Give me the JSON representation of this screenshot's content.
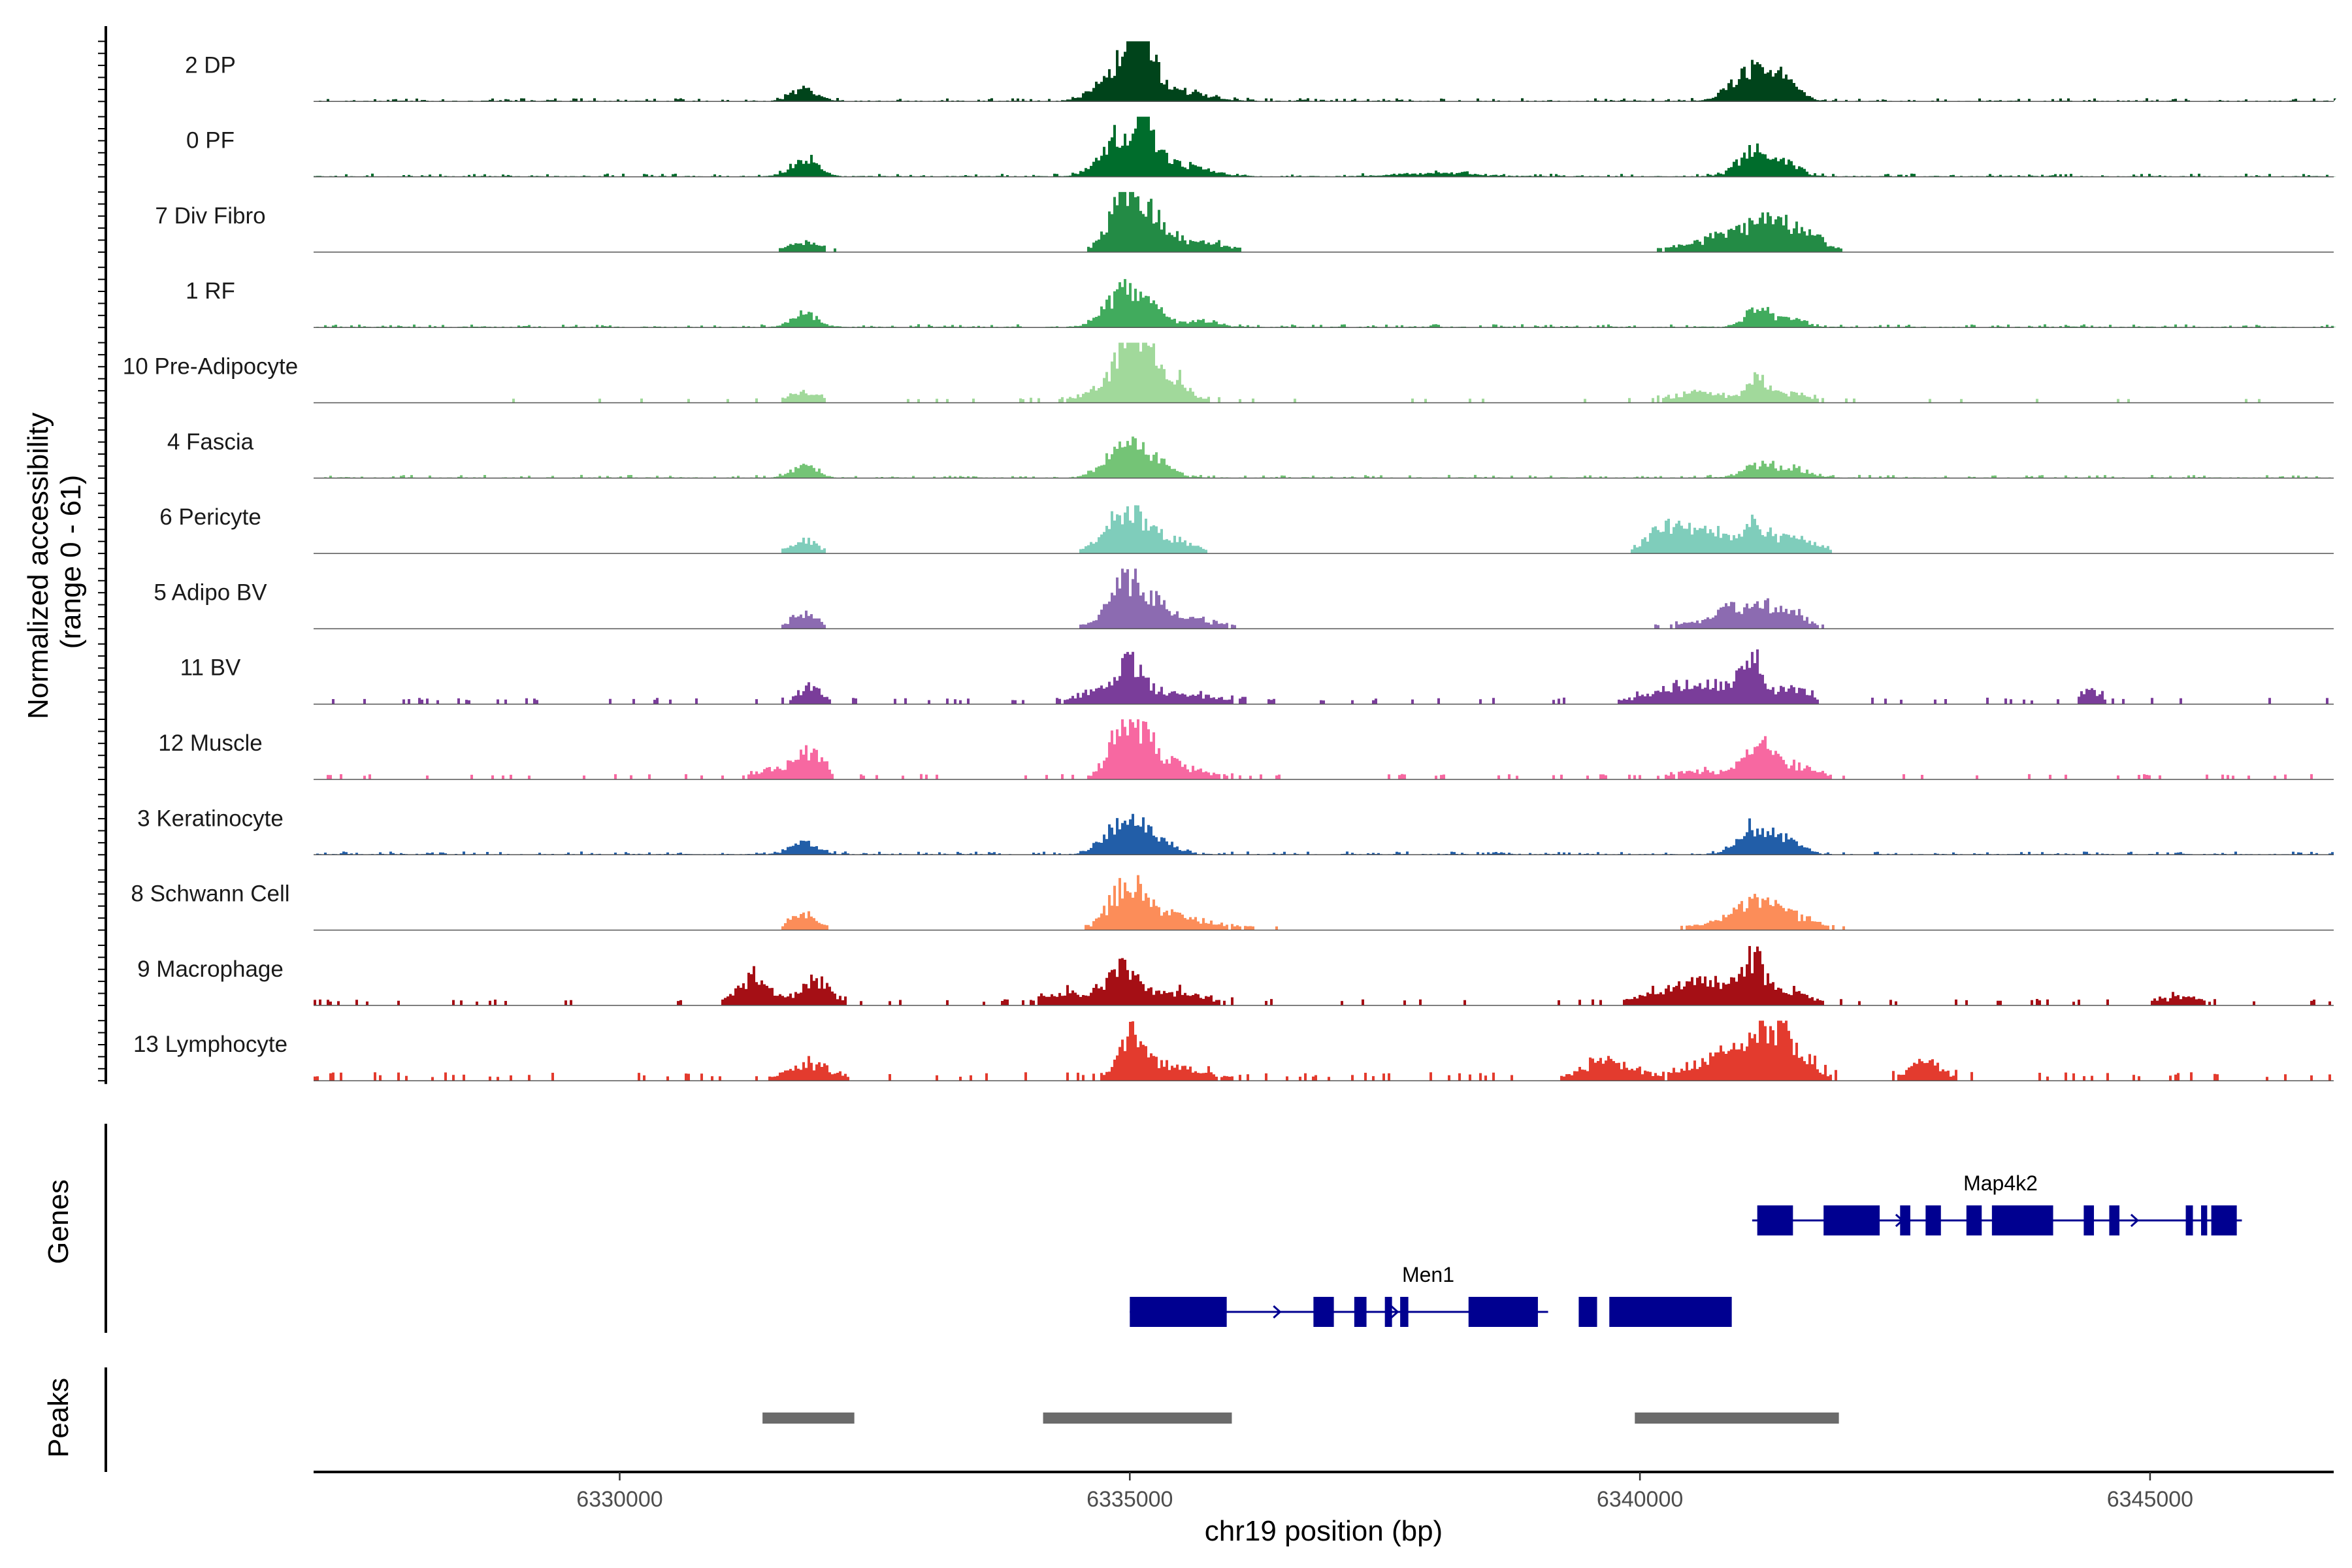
{
  "chart_data": {
    "type": "area",
    "title": "",
    "ylabel_lines": [
      "Normalized accessibility",
      "(range 0 - 61)"
    ],
    "xlabel": "chr19 position (bp)",
    "x_range": [
      6327000,
      6346800
    ],
    "x_ticks": [
      6330000,
      6335000,
      6340000,
      6345000
    ],
    "x_tick_labels": [
      "6330000",
      "6335000",
      "6340000",
      "6345000"
    ],
    "y_range": [
      0,
      61
    ],
    "genes_label": "Genes",
    "peaks_label": "Peaks",
    "series": [
      {
        "name": "2 DP",
        "color": "#00441b",
        "noise": 0.03,
        "gaps": false,
        "peaks": [
          [
            6331800,
            120,
            0.2
          ],
          [
            6334900,
            200,
            0.55
          ],
          [
            6335050,
            90,
            0.85
          ],
          [
            6335150,
            120,
            0.4
          ],
          [
            6335500,
            250,
            0.15
          ],
          [
            6341050,
            180,
            0.45
          ],
          [
            6341300,
            130,
            0.35
          ],
          [
            6341500,
            100,
            0.2
          ]
        ]
      },
      {
        "name": "0 PF",
        "color": "#006d2c",
        "noise": 0.03,
        "gaps": false,
        "peaks": [
          [
            6331800,
            120,
            0.32
          ],
          [
            6334950,
            200,
            0.7
          ],
          [
            6335150,
            100,
            0.35
          ],
          [
            6335500,
            250,
            0.18
          ],
          [
            6341100,
            150,
            0.4
          ],
          [
            6341450,
            120,
            0.2
          ],
          [
            6338000,
            400,
            0.05
          ]
        ]
      },
      {
        "name": "7 Div Fibro",
        "color": "#238b45",
        "noise": 0.03,
        "gaps": true,
        "peaks": [
          [
            6331800,
            150,
            0.15
          ],
          [
            6334950,
            160,
            0.9
          ],
          [
            6335250,
            150,
            0.4
          ],
          [
            6335700,
            250,
            0.15
          ],
          [
            6340500,
            250,
            0.12
          ],
          [
            6340800,
            130,
            0.2
          ],
          [
            6341200,
            180,
            0.55
          ],
          [
            6341600,
            180,
            0.3
          ]
        ]
      },
      {
        "name": "1 RF",
        "color": "#41ab5d",
        "noise": 0.03,
        "gaps": false,
        "peaks": [
          [
            6331800,
            120,
            0.22
          ],
          [
            6334950,
            180,
            0.6
          ],
          [
            6335250,
            120,
            0.25
          ],
          [
            6335700,
            160,
            0.1
          ],
          [
            6341150,
            130,
            0.28
          ],
          [
            6341500,
            120,
            0.12
          ]
        ]
      },
      {
        "name": "10 Pre-Adipocyte",
        "color": "#a1d99b",
        "noise": 0.04,
        "gaps": true,
        "peaks": [
          [
            6331800,
            150,
            0.15
          ],
          [
            6334950,
            120,
            0.65
          ],
          [
            6335100,
            120,
            0.7
          ],
          [
            6335450,
            100,
            0.3
          ],
          [
            6335000,
            400,
            0.25
          ],
          [
            6340600,
            300,
            0.15
          ],
          [
            6341150,
            100,
            0.35
          ],
          [
            6341500,
            150,
            0.15
          ]
        ]
      },
      {
        "name": "4 Fascia",
        "color": "#74c476",
        "noise": 0.03,
        "gaps": false,
        "peaks": [
          [
            6331800,
            120,
            0.2
          ],
          [
            6334950,
            180,
            0.6
          ],
          [
            6335300,
            120,
            0.25
          ],
          [
            6341150,
            150,
            0.2
          ],
          [
            6341500,
            150,
            0.15
          ]
        ]
      },
      {
        "name": "6 Pericyte",
        "color": "#7fcdbb",
        "noise": 0.03,
        "gaps": true,
        "peaks": [
          [
            6331800,
            120,
            0.2
          ],
          [
            6334950,
            200,
            0.65
          ],
          [
            6335400,
            200,
            0.2
          ],
          [
            6340300,
            200,
            0.45
          ],
          [
            6340700,
            130,
            0.35
          ],
          [
            6341100,
            120,
            0.45
          ],
          [
            6341500,
            200,
            0.25
          ]
        ]
      },
      {
        "name": "5 Adipo BV",
        "color": "#8c6bb1",
        "noise": 0.03,
        "gaps": true,
        "peaks": [
          [
            6331800,
            120,
            0.25
          ],
          [
            6334950,
            170,
            0.75
          ],
          [
            6335300,
            180,
            0.3
          ],
          [
            6335700,
            250,
            0.1
          ],
          [
            6340600,
            300,
            0.1
          ],
          [
            6340850,
            100,
            0.18
          ],
          [
            6341150,
            180,
            0.38
          ],
          [
            6341500,
            150,
            0.2
          ]
        ]
      },
      {
        "name": "11 BV",
        "color": "#7a3d9a",
        "noise": 0.06,
        "gaps": true,
        "peaks": [
          [
            6331850,
            100,
            0.3
          ],
          [
            6335000,
            130,
            0.55
          ],
          [
            6334700,
            200,
            0.2
          ],
          [
            6335500,
            300,
            0.15
          ],
          [
            6340300,
            300,
            0.2
          ],
          [
            6340800,
            300,
            0.25
          ],
          [
            6341100,
            100,
            0.6
          ],
          [
            6341500,
            150,
            0.2
          ],
          [
            6344400,
            100,
            0.2
          ]
        ]
      },
      {
        "name": "12 Muscle",
        "color": "#f768a1",
        "noise": 0.05,
        "gaps": true,
        "peaks": [
          [
            6331850,
            130,
            0.4
          ],
          [
            6331500,
            200,
            0.15
          ],
          [
            6334950,
            150,
            0.9
          ],
          [
            6335200,
            200,
            0.35
          ],
          [
            6335600,
            200,
            0.12
          ],
          [
            6341150,
            130,
            0.65
          ],
          [
            6341500,
            200,
            0.2
          ],
          [
            6340600,
            300,
            0.12
          ]
        ]
      },
      {
        "name": "3 Keratinocyte",
        "color": "#225ea8",
        "noise": 0.03,
        "gaps": false,
        "peaks": [
          [
            6331800,
            120,
            0.22
          ],
          [
            6334950,
            180,
            0.58
          ],
          [
            6335300,
            150,
            0.18
          ],
          [
            6341100,
            150,
            0.42
          ],
          [
            6341400,
            150,
            0.22
          ]
        ]
      },
      {
        "name": "8 Schwann Cell",
        "color": "#fc8d59",
        "noise": 0.03,
        "gaps": true,
        "peaks": [
          [
            6331800,
            130,
            0.25
          ],
          [
            6334950,
            170,
            0.62
          ],
          [
            6335300,
            250,
            0.25
          ],
          [
            6335800,
            300,
            0.08
          ],
          [
            6341150,
            200,
            0.45
          ],
          [
            6341550,
            200,
            0.15
          ],
          [
            6340700,
            200,
            0.1
          ]
        ]
      },
      {
        "name": "9 Macrophage",
        "color": "#a50f15",
        "noise": 0.06,
        "gaps": true,
        "peaks": [
          [
            6331300,
            160,
            0.42
          ],
          [
            6331900,
            160,
            0.35
          ],
          [
            6334400,
            250,
            0.2
          ],
          [
            6334950,
            160,
            0.55
          ],
          [
            6335500,
            250,
            0.18
          ],
          [
            6340200,
            250,
            0.15
          ],
          [
            6340700,
            300,
            0.35
          ],
          [
            6341100,
            100,
            0.6
          ],
          [
            6341450,
            200,
            0.2
          ],
          [
            6345300,
            200,
            0.12
          ]
        ]
      },
      {
        "name": "13 Lymphocyte",
        "color": "#e33b2e",
        "noise": 0.08,
        "gaps": true,
        "peaks": [
          [
            6331850,
            200,
            0.25
          ],
          [
            6335000,
            120,
            0.65
          ],
          [
            6335400,
            300,
            0.2
          ],
          [
            6339700,
            250,
            0.3
          ],
          [
            6340700,
            250,
            0.25
          ],
          [
            6341150,
            250,
            0.6
          ],
          [
            6341450,
            200,
            0.4
          ],
          [
            6342800,
            150,
            0.3
          ]
        ]
      }
    ],
    "genes": [
      {
        "name": "Men1",
        "start": 6335000,
        "end": 6339100,
        "strand": "+",
        "row": 2,
        "exons": [
          [
            6335000,
            6335950
          ],
          [
            6336800,
            6337000
          ],
          [
            6337200,
            6337320
          ],
          [
            6337500,
            6337570
          ],
          [
            6337650,
            6337730
          ],
          [
            6338320,
            6339000
          ],
          [
            6339400,
            6339580
          ],
          [
            6339700,
            6340900
          ]
        ]
      },
      {
        "name": "Map4k2",
        "start": 6341100,
        "end": 6345900,
        "strand": "+",
        "row": 1,
        "exons": [
          [
            6341150,
            6341500
          ],
          [
            6341800,
            6342350
          ],
          [
            6342550,
            6342650
          ],
          [
            6342800,
            6342950
          ],
          [
            6343200,
            6343350
          ],
          [
            6343450,
            6344050
          ],
          [
            6344350,
            6344450
          ],
          [
            6344600,
            6344700
          ],
          [
            6345350,
            6345420
          ],
          [
            6345500,
            6345560
          ],
          [
            6345600,
            6345850
          ]
        ]
      }
    ],
    "peaks": [
      [
        6331400,
        6332300
      ],
      [
        6334150,
        6336000
      ],
      [
        6339950,
        6341950
      ]
    ]
  }
}
